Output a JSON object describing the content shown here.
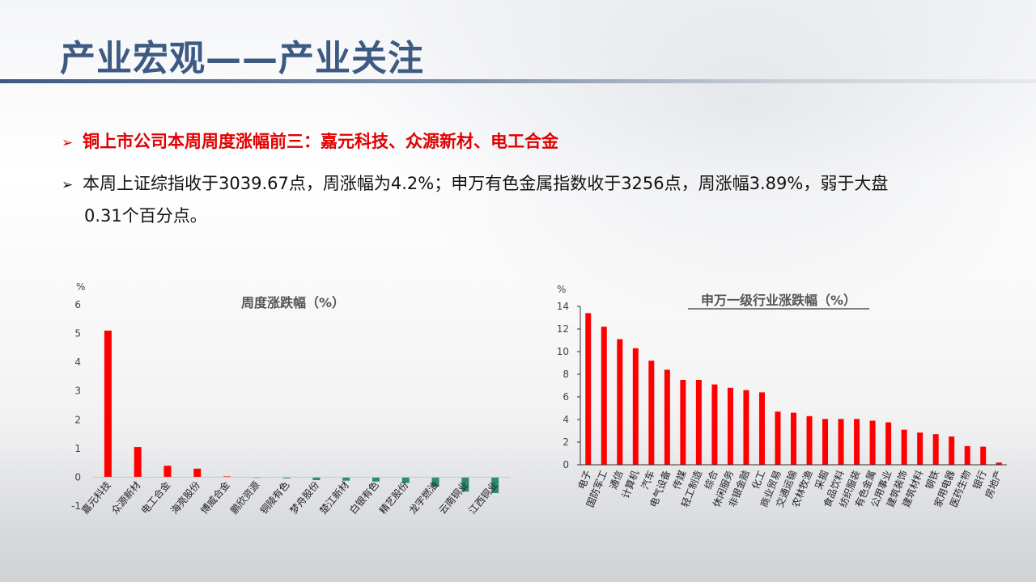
{
  "header": {
    "title": "产业宏观——产业关注"
  },
  "bullets": {
    "first": "铜上市公司本周周度涨幅前三：嘉元科技、众源新材、电工合金",
    "second_line1": "本周上证综指收于3039.67点，周涨幅为4.2%；申万有色金属指数收于3256点，周涨幅3.89%，弱于大盘",
    "second_line2": "0.31个百分点。"
  },
  "colors": {
    "title": "#3d5a82",
    "positive": "#ff0000",
    "negative": "#2e8b73",
    "highlight": "#e00000"
  },
  "chart_data": [
    {
      "type": "bar",
      "title": "周度涨跌幅（%）",
      "ylabel": "%",
      "ylim": [
        -1,
        6
      ],
      "yticks": [
        -1,
        0,
        1,
        2,
        3,
        4,
        5,
        6
      ],
      "grid": false,
      "categories": [
        "嘉元科技",
        "众源新材",
        "电工合金",
        "海亮股份",
        "博威合金",
        "鹏欣资源",
        "铜陵有色",
        "梦舟股份",
        "楚江新材",
        "白银有色",
        "精艺股份",
        "龙宇燃油",
        "云南铜业",
        "江西铜业"
      ],
      "values": [
        5.1,
        1.05,
        0.4,
        0.3,
        0.03,
        -0.02,
        -0.04,
        -0.1,
        -0.12,
        -0.15,
        -0.2,
        -0.32,
        -0.5,
        -0.55
      ]
    },
    {
      "type": "bar",
      "title": "申万一级行业涨跌幅（%）",
      "ylabel": "%",
      "ylim": [
        0,
        14
      ],
      "yticks": [
        0,
        2,
        4,
        6,
        8,
        10,
        12,
        14
      ],
      "grid": false,
      "categories": [
        "电子",
        "国防军工",
        "通信",
        "计算机",
        "汽车",
        "电气设备",
        "传媒",
        "轻工制造",
        "综合",
        "休闲服务",
        "非银金融",
        "化工",
        "商业贸易",
        "交通运输",
        "农林牧渔",
        "采掘",
        "食品饮料",
        "纺织服装",
        "有色金属",
        "公用事业",
        "建筑装饰",
        "建筑材料",
        "钢铁",
        "家用电器",
        "医药生物",
        "银行",
        "房地产"
      ],
      "values": [
        13.4,
        12.2,
        11.1,
        10.3,
        9.2,
        8.4,
        7.5,
        7.5,
        7.1,
        6.8,
        6.6,
        6.4,
        4.7,
        4.6,
        4.3,
        4.05,
        4.05,
        4.05,
        3.9,
        3.75,
        3.1,
        2.85,
        2.7,
        2.5,
        1.65,
        1.6,
        0.2
      ]
    }
  ]
}
